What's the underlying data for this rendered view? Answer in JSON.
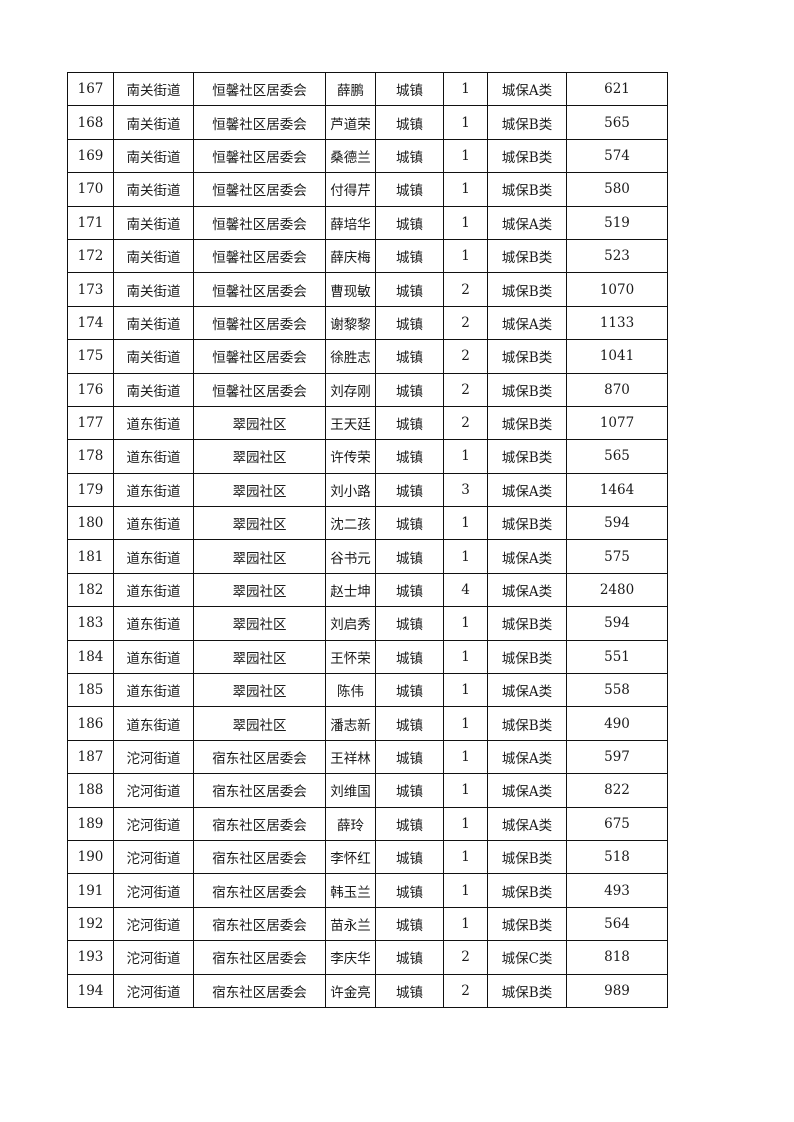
{
  "table": {
    "rows": [
      [
        "167",
        "南关街道",
        "恒馨社区居委会",
        "薛鹏",
        "城镇",
        "1",
        "城保A类",
        "621"
      ],
      [
        "168",
        "南关街道",
        "恒馨社区居委会",
        "芦道荣",
        "城镇",
        "1",
        "城保B类",
        "565"
      ],
      [
        "169",
        "南关街道",
        "恒馨社区居委会",
        "桑德兰",
        "城镇",
        "1",
        "城保B类",
        "574"
      ],
      [
        "170",
        "南关街道",
        "恒馨社区居委会",
        "付得芹",
        "城镇",
        "1",
        "城保B类",
        "580"
      ],
      [
        "171",
        "南关街道",
        "恒馨社区居委会",
        "薛培华",
        "城镇",
        "1",
        "城保A类",
        "519"
      ],
      [
        "172",
        "南关街道",
        "恒馨社区居委会",
        "薛庆梅",
        "城镇",
        "1",
        "城保B类",
        "523"
      ],
      [
        "173",
        "南关街道",
        "恒馨社区居委会",
        "曹现敏",
        "城镇",
        "2",
        "城保B类",
        "1070"
      ],
      [
        "174",
        "南关街道",
        "恒馨社区居委会",
        "谢黎黎",
        "城镇",
        "2",
        "城保A类",
        "1133"
      ],
      [
        "175",
        "南关街道",
        "恒馨社区居委会",
        "徐胜志",
        "城镇",
        "2",
        "城保B类",
        "1041"
      ],
      [
        "176",
        "南关街道",
        "恒馨社区居委会",
        "刘存刚",
        "城镇",
        "2",
        "城保B类",
        "870"
      ],
      [
        "177",
        "道东街道",
        "翠园社区",
        "王天廷",
        "城镇",
        "2",
        "城保B类",
        "1077"
      ],
      [
        "178",
        "道东街道",
        "翠园社区",
        "许传荣",
        "城镇",
        "1",
        "城保B类",
        "565"
      ],
      [
        "179",
        "道东街道",
        "翠园社区",
        "刘小路",
        "城镇",
        "3",
        "城保A类",
        "1464"
      ],
      [
        "180",
        "道东街道",
        "翠园社区",
        "沈二孩",
        "城镇",
        "1",
        "城保B类",
        "594"
      ],
      [
        "181",
        "道东街道",
        "翠园社区",
        "谷书元",
        "城镇",
        "1",
        "城保A类",
        "575"
      ],
      [
        "182",
        "道东街道",
        "翠园社区",
        "赵士坤",
        "城镇",
        "4",
        "城保A类",
        "2480"
      ],
      [
        "183",
        "道东街道",
        "翠园社区",
        "刘启秀",
        "城镇",
        "1",
        "城保B类",
        "594"
      ],
      [
        "184",
        "道东街道",
        "翠园社区",
        "王怀荣",
        "城镇",
        "1",
        "城保B类",
        "551"
      ],
      [
        "185",
        "道东街道",
        "翠园社区",
        "陈伟",
        "城镇",
        "1",
        "城保A类",
        "558"
      ],
      [
        "186",
        "道东街道",
        "翠园社区",
        "潘志新",
        "城镇",
        "1",
        "城保B类",
        "490"
      ],
      [
        "187",
        "沱河街道",
        "宿东社区居委会",
        "王祥林",
        "城镇",
        "1",
        "城保A类",
        "597"
      ],
      [
        "188",
        "沱河街道",
        "宿东社区居委会",
        "刘维国",
        "城镇",
        "1",
        "城保A类",
        "822"
      ],
      [
        "189",
        "沱河街道",
        "宿东社区居委会",
        "薛玲",
        "城镇",
        "1",
        "城保A类",
        "675"
      ],
      [
        "190",
        "沱河街道",
        "宿东社区居委会",
        "李怀红",
        "城镇",
        "1",
        "城保B类",
        "518"
      ],
      [
        "191",
        "沱河街道",
        "宿东社区居委会",
        "韩玉兰",
        "城镇",
        "1",
        "城保B类",
        "493"
      ],
      [
        "192",
        "沱河街道",
        "宿东社区居委会",
        "苗永兰",
        "城镇",
        "1",
        "城保B类",
        "564"
      ],
      [
        "193",
        "沱河街道",
        "宿东社区居委会",
        "李庆华",
        "城镇",
        "2",
        "城保C类",
        "818"
      ],
      [
        "194",
        "沱河街道",
        "宿东社区居委会",
        "许金亮",
        "城镇",
        "2",
        "城保B类",
        "989"
      ]
    ]
  }
}
